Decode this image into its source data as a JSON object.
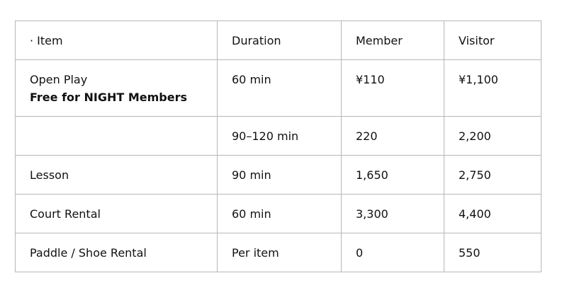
{
  "table": {
    "columns": {
      "item": "· Item",
      "duration": "Duration",
      "member": "Member",
      "visitor": "Visitor"
    },
    "rows": [
      {
        "item": "Open Play",
        "item_note": "Free for NIGHT Members",
        "duration": "60 min",
        "member": "¥110",
        "visitor": "¥1,100"
      },
      {
        "item": "",
        "duration": "90–120 min",
        "member": "220",
        "visitor": "2,200"
      },
      {
        "item": "Lesson",
        "duration": "90 min",
        "member": "1,650",
        "visitor": "2,750"
      },
      {
        "item": "Court Rental",
        "duration": "60 min",
        "member": "3,300",
        "visitor": "4,400"
      },
      {
        "item": "Paddle / Shoe Rental",
        "duration": "Per item",
        "member": "0",
        "visitor": "550"
      }
    ]
  },
  "colors": {
    "text": "#111111",
    "border": "#b7b7b7",
    "background": "#ffffff"
  }
}
